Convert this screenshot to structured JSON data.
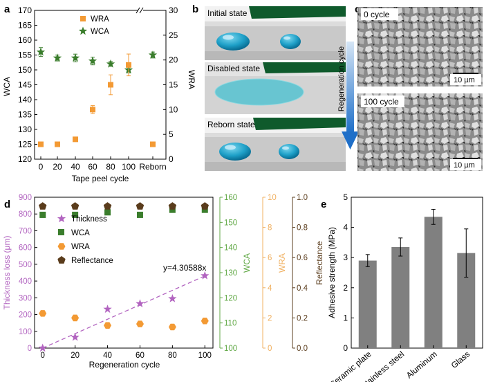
{
  "figure": {
    "panel_labels": {
      "a": "a",
      "b": "b",
      "c": "c",
      "d": "d",
      "e": "e"
    }
  },
  "panel_b": {
    "captions": [
      "Initial state",
      "Disabled state",
      "Reborn state"
    ]
  },
  "panel_c": {
    "axis_label": "Regeneration cycle",
    "captions": [
      "0 cycle",
      "100 cycle"
    ],
    "scale_bars": [
      "10 µm",
      "10 µm"
    ]
  },
  "colors": {
    "wca_green": "#3a7d2c",
    "wra_orange": "#f39a34",
    "thickness_purple": "#b264c0",
    "reflect_brown": "#5a3c1c",
    "d_green_axis": "#60a845",
    "d_orange_axis": "#f0b060",
    "bar_gray": "#808080",
    "arrow_blue": "#1f6fc8"
  },
  "chart_data": [
    {
      "id": "a",
      "type": "scatter",
      "xlabel": "Tape peel cycle",
      "ylabel_left": "WCA",
      "ylabel_right": "WRA",
      "categories": [
        "0",
        "20",
        "40",
        "60",
        "80",
        "100",
        "Reborn"
      ],
      "x_tick_labels": [
        "0",
        "20",
        "40",
        "60",
        "80",
        "100",
        "Reborn"
      ],
      "y_left_range": [
        120,
        170
      ],
      "y_left_ticks": [
        "120",
        "125",
        "130",
        "135",
        "140",
        "145",
        "150",
        "155",
        "160",
        "165",
        "170"
      ],
      "y_right_range": [
        0,
        30
      ],
      "y_right_ticks": [
        "0",
        "5",
        "10",
        "15",
        "20",
        "25",
        "30"
      ],
      "axis_break": true,
      "legend": {
        "position": "top",
        "entries": [
          "WRA",
          "WCA"
        ]
      },
      "series": [
        {
          "name": "WCA",
          "axis": "left",
          "marker": "star",
          "values": [
            156,
            154,
            154,
            153,
            152,
            150,
            155
          ],
          "errors": [
            1.5,
            1.0,
            1.3,
            1.3,
            0.8,
            1.0,
            1.0
          ]
        },
        {
          "name": "WRA",
          "axis": "right",
          "marker": "square",
          "values": [
            3,
            3,
            4,
            10,
            15,
            19,
            3
          ],
          "errors": [
            0,
            0,
            0,
            0.8,
            2,
            2.2,
            0
          ]
        }
      ]
    },
    {
      "id": "d",
      "type": "scatter",
      "xlabel": "Regeneration cycle",
      "x": [
        0,
        20,
        40,
        60,
        80,
        100
      ],
      "x_range": [
        -5,
        105
      ],
      "x_ticks": [
        "0",
        "20",
        "40",
        "60",
        "80",
        "100"
      ],
      "axes": {
        "thickness": {
          "label": "Thickness loss (μm)",
          "range": [
            0,
            900
          ],
          "ticks": [
            "0",
            "100",
            "200",
            "300",
            "400",
            "500",
            "600",
            "700",
            "800",
            "900"
          ]
        },
        "wca": {
          "label": "WCA",
          "range": [
            100,
            160
          ],
          "ticks": [
            "100",
            "110",
            "120",
            "130",
            "140",
            "150",
            "160"
          ]
        },
        "wra": {
          "label": "WRA",
          "range": [
            0,
            10
          ],
          "ticks": [
            "0",
            "2",
            "4",
            "6",
            "8",
            "10"
          ]
        },
        "reflectance": {
          "label": "Reflectance",
          "range": [
            0,
            1
          ],
          "ticks": [
            "0.0",
            "0.2",
            "0.4",
            "0.6",
            "0.8",
            "1.0"
          ]
        }
      },
      "legend": {
        "position": "middle-left",
        "entries": [
          "Thickness",
          "WCA",
          "WRA",
          "Reflectance"
        ]
      },
      "series": [
        {
          "name": "Thickness",
          "axis": "thickness",
          "marker": "star",
          "values": [
            0,
            65,
            232,
            265,
            295,
            432
          ]
        },
        {
          "name": "WCA",
          "axis": "wca",
          "marker": "square",
          "values": [
            153,
            153,
            154,
            153,
            155,
            155
          ]
        },
        {
          "name": "WRA",
          "axis": "wra",
          "marker": "hexagon",
          "values": [
            2.3,
            2.0,
            1.5,
            1.6,
            1.4,
            1.8
          ]
        },
        {
          "name": "Reflectance",
          "axis": "reflectance",
          "marker": "pentagon",
          "values": [
            0.94,
            0.94,
            0.94,
            0.94,
            0.94,
            0.94
          ]
        }
      ],
      "fit": {
        "label": "y=4.30588x",
        "slope": 4.30588,
        "axis": "thickness"
      }
    },
    {
      "id": "e",
      "type": "bar",
      "ylabel": "Adhesive strength (MPa)",
      "categories": [
        "Ceramic plate",
        "Stainless steel",
        "Aluminum",
        "Glass"
      ],
      "values": [
        2.9,
        3.35,
        4.35,
        3.15
      ],
      "errors": [
        0.2,
        0.3,
        0.25,
        0.8
      ],
      "ylim": [
        0,
        5
      ],
      "y_ticks": [
        "0",
        "1",
        "2",
        "3",
        "4",
        "5"
      ]
    }
  ]
}
